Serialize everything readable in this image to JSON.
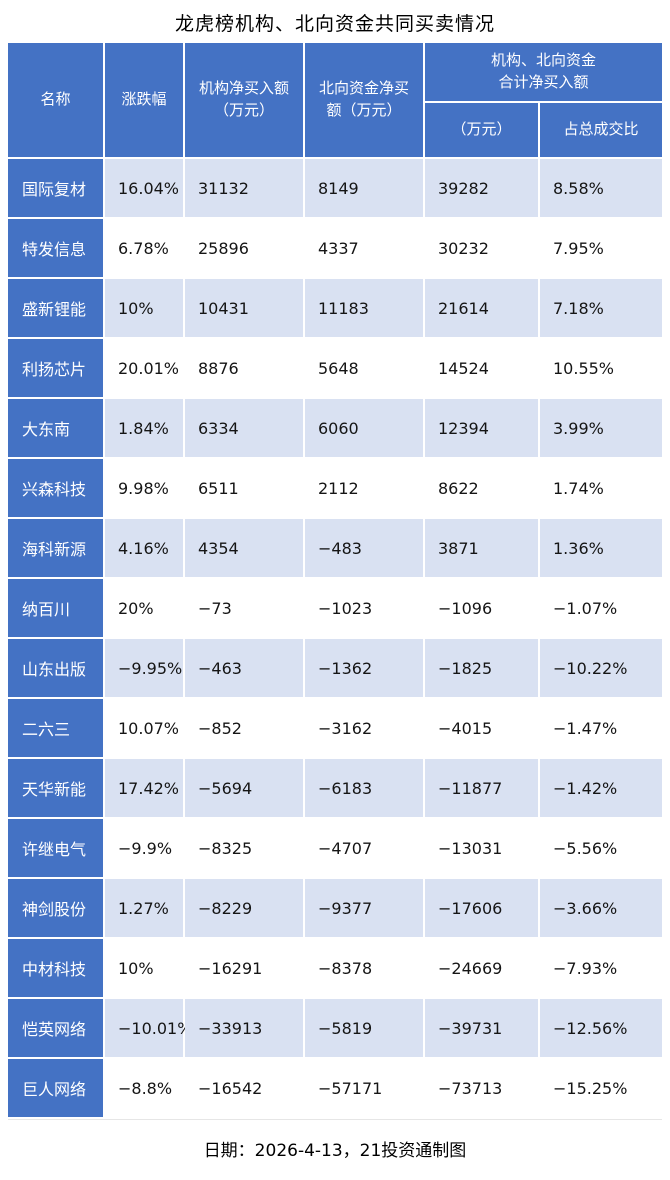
{
  "colors": {
    "header_blue": "#4472c4",
    "stripe": "#d9e1f2"
  },
  "chart_data": {
    "type": "table",
    "title": "龙虎榜机构、北向资金共同买卖情况",
    "headers": {
      "name": "名称",
      "change": "涨跌幅",
      "inst": "机构净买入额\n（万元）",
      "north": "北向资金净买\n额（万元）",
      "combined": "机构、北向资金\n合计净买入额",
      "combined_amount": "（万元）",
      "combined_ratio": "占总成交比"
    },
    "rows": [
      {
        "name": "国际复材",
        "change": "16.04%",
        "inst": "31132",
        "north": "8149",
        "total": "39282",
        "ratio": "8.58%"
      },
      {
        "name": "特发信息",
        "change": "6.78%",
        "inst": "25896",
        "north": "4337",
        "total": "30232",
        "ratio": "7.95%"
      },
      {
        "name": "盛新锂能",
        "change": "10%",
        "inst": "10431",
        "north": "11183",
        "total": "21614",
        "ratio": "7.18%"
      },
      {
        "name": "利扬芯片",
        "change": "20.01%",
        "inst": "8876",
        "north": "5648",
        "total": "14524",
        "ratio": "10.55%"
      },
      {
        "name": "大东南",
        "change": "1.84%",
        "inst": "6334",
        "north": "6060",
        "total": "12394",
        "ratio": "3.99%"
      },
      {
        "name": "兴森科技",
        "change": "9.98%",
        "inst": "6511",
        "north": "2112",
        "total": "8622",
        "ratio": "1.74%"
      },
      {
        "name": "海科新源",
        "change": "4.16%",
        "inst": "4354",
        "north": "−483",
        "total": "3871",
        "ratio": "1.36%"
      },
      {
        "name": "纳百川",
        "change": "20%",
        "inst": "−73",
        "north": "−1023",
        "total": "−1096",
        "ratio": "−1.07%"
      },
      {
        "name": "山东出版",
        "change": "−9.95%",
        "inst": "−463",
        "north": "−1362",
        "total": "−1825",
        "ratio": "−10.22%"
      },
      {
        "name": "二六三",
        "change": "10.07%",
        "inst": "−852",
        "north": "−3162",
        "total": "−4015",
        "ratio": "−1.47%"
      },
      {
        "name": "天华新能",
        "change": "17.42%",
        "inst": "−5694",
        "north": "−6183",
        "total": "−11877",
        "ratio": "−1.42%"
      },
      {
        "name": "许继电气",
        "change": "−9.9%",
        "inst": "−8325",
        "north": "−4707",
        "total": "−13031",
        "ratio": "−5.56%"
      },
      {
        "name": "神剑股份",
        "change": "1.27%",
        "inst": "−8229",
        "north": "−9377",
        "total": "−17606",
        "ratio": "−3.66%"
      },
      {
        "name": "中材科技",
        "change": "10%",
        "inst": "−16291",
        "north": "−8378",
        "total": "−24669",
        "ratio": "−7.93%"
      },
      {
        "name": "恺英网络",
        "change": "−10.01%",
        "inst": "−33913",
        "north": "−5819",
        "total": "−39731",
        "ratio": "−12.56%"
      },
      {
        "name": "巨人网络",
        "change": "−8.8%",
        "inst": "−16542",
        "north": "−57171",
        "total": "−73713",
        "ratio": "−15.25%"
      }
    ],
    "footer": "日期：2026-4-13，21投资通制图"
  }
}
